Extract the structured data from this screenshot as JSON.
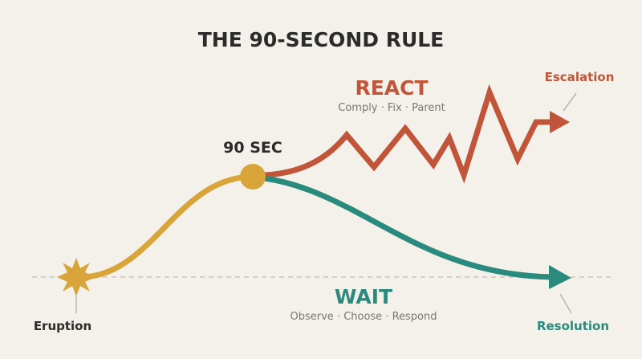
{
  "title": "THE 90-SECOND RULE",
  "peak": {
    "label": "90 SEC"
  },
  "react": {
    "title": "REACT",
    "subtitle": "Comply · Fix · Parent"
  },
  "wait": {
    "title": "WAIT",
    "subtitle": "Observe · Choose · Respond"
  },
  "endpoints": {
    "start": "Eruption",
    "escalation": "Escalation",
    "resolution": "Resolution"
  }
}
